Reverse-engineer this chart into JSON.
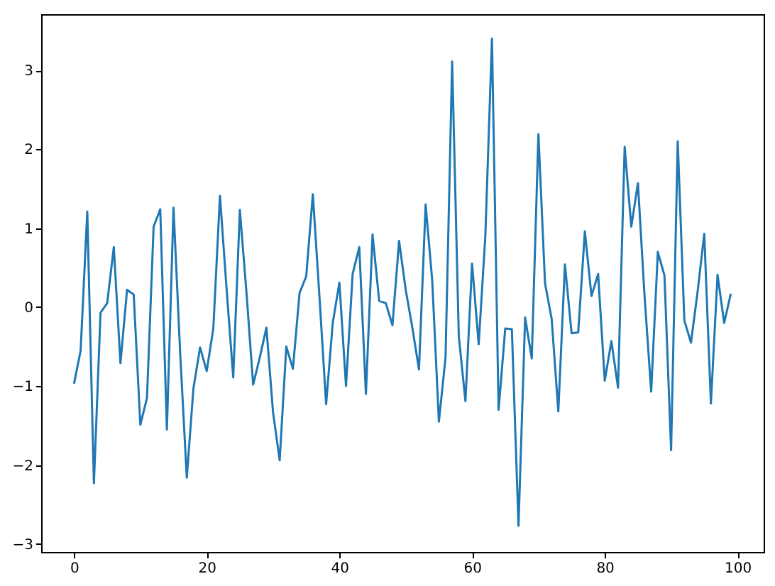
{
  "chart_data": {
    "type": "line",
    "x": [
      0,
      1,
      2,
      3,
      4,
      5,
      6,
      7,
      8,
      9,
      10,
      11,
      12,
      13,
      14,
      15,
      16,
      17,
      18,
      19,
      20,
      21,
      22,
      23,
      24,
      25,
      26,
      27,
      28,
      29,
      30,
      31,
      32,
      33,
      34,
      35,
      36,
      37,
      38,
      39,
      40,
      41,
      42,
      43,
      44,
      45,
      46,
      47,
      48,
      49,
      50,
      51,
      52,
      53,
      54,
      55,
      56,
      57,
      58,
      59,
      60,
      61,
      62,
      63,
      64,
      65,
      66,
      67,
      68,
      69,
      70,
      71,
      72,
      73,
      74,
      75,
      76,
      77,
      78,
      79,
      80,
      81,
      82,
      83,
      84,
      85,
      86,
      87,
      88,
      89,
      90,
      91,
      92,
      93,
      94,
      95,
      96,
      97,
      98,
      99
    ],
    "series": [
      {
        "color": "#1f77b4",
        "values": [
          -0.97,
          -0.55,
          1.21,
          -2.23,
          -0.07,
          0.05,
          0.76,
          -0.71,
          0.22,
          0.16,
          -1.49,
          -1.15,
          1.02,
          1.24,
          -1.55,
          1.26,
          -0.58,
          -2.16,
          -1.03,
          -0.51,
          -0.81,
          -0.27,
          1.41,
          0.23,
          -0.89,
          1.23,
          0.18,
          -0.98,
          -0.64,
          -0.26,
          -1.33,
          -1.94,
          -0.5,
          -0.78,
          0.18,
          0.39,
          1.43,
          0.13,
          -1.23,
          -0.2,
          0.31,
          -1.0,
          0.42,
          0.76,
          -1.1,
          0.92,
          0.08,
          0.05,
          -0.23,
          0.84,
          0.22,
          -0.26,
          -0.79,
          1.3,
          0.33,
          -1.45,
          -0.64,
          3.11,
          -0.37,
          -1.19,
          0.55,
          -0.47,
          0.9,
          3.4,
          -1.3,
          -0.27,
          -0.28,
          -2.77,
          -0.13,
          -0.65,
          2.19,
          0.3,
          -0.15,
          -1.32,
          0.54,
          -0.33,
          -0.32,
          0.96,
          0.14,
          0.42,
          -0.93,
          -0.43,
          -1.02,
          2.03,
          1.02,
          1.57,
          0.14,
          -1.07,
          0.7,
          0.4,
          -1.81,
          2.1,
          -0.17,
          -0.45,
          0.2,
          0.93,
          -1.22,
          0.41,
          -0.2,
          0.17
        ]
      }
    ],
    "xlim": [
      -4.95,
      103.95
    ],
    "ylim": [
      -3.1,
      3.71
    ],
    "xticks": [
      0,
      20,
      40,
      60,
      80,
      100
    ],
    "yticks": [
      -3,
      -2,
      -1,
      0,
      1,
      2,
      3
    ],
    "grid": false,
    "marker": "none",
    "line_style": "solid"
  }
}
